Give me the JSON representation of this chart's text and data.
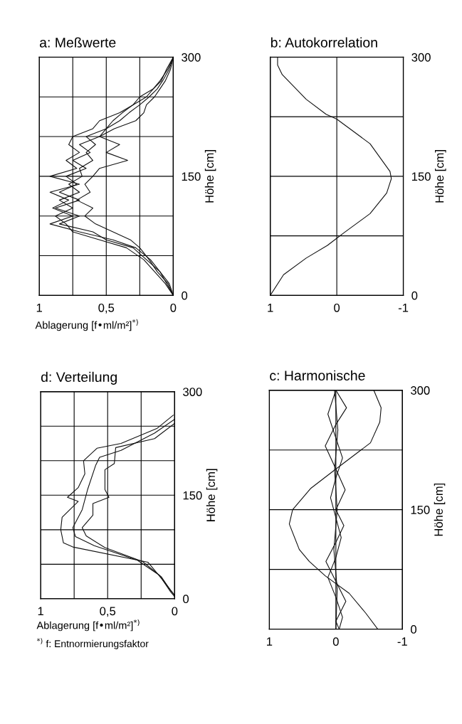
{
  "chart_data": [
    {
      "type": "line",
      "title": "a: Meßwerte",
      "xlabel": "Ablagerung [f•ml/m²]$^{*)}$",
      "ylabel": "Höhe [cm]",
      "xlim": [
        1,
        0
      ],
      "ylim": [
        0,
        300
      ],
      "xticks": [
        1,
        {
          "value": 0.75,
          "label": null
        },
        {
          "value": 0.5,
          "label": "0,5"
        },
        {
          "value": 0.25,
          "label": null
        },
        0
      ],
      "yticks": [
        0,
        {
          "value": 50,
          "label": null
        },
        {
          "value": 100,
          "label": null
        },
        150,
        {
          "value": 200,
          "label": null
        },
        {
          "value": 250,
          "label": null
        },
        300
      ],
      "grid": true,
      "series": [
        {
          "color": "#111111",
          "values": [
            0,
            15,
            30,
            45,
            60,
            70,
            80,
            90,
            100,
            110,
            120,
            130,
            140,
            150,
            160,
            170,
            180,
            190,
            200,
            210,
            220,
            230,
            240,
            250,
            260,
            270,
            285,
            300
          ],
          "x": [
            0,
            0.04,
            0.12,
            0.18,
            0.25,
            0.32,
            0.45,
            0.58,
            0.66,
            0.6,
            0.72,
            0.62,
            0.66,
            0.6,
            0.55,
            0.34,
            0.5,
            0.4,
            0.55,
            0.44,
            0.28,
            0.22,
            0.2,
            0.14,
            0.1,
            0.06,
            0.02,
            0
          ]
        },
        {
          "color": "#111111",
          "values": [
            0,
            15,
            30,
            45,
            60,
            70,
            80,
            90,
            100,
            110,
            120,
            130,
            140,
            150,
            160,
            170,
            180,
            190,
            200,
            210,
            220,
            230,
            240,
            250,
            260,
            270,
            285,
            300
          ],
          "x": [
            0,
            0.05,
            0.1,
            0.2,
            0.3,
            0.5,
            0.6,
            0.85,
            0.7,
            0.88,
            0.7,
            0.85,
            0.72,
            0.8,
            0.65,
            0.75,
            0.62,
            0.7,
            0.55,
            0.5,
            0.4,
            0.33,
            0.25,
            0.18,
            0.12,
            0.08,
            0.03,
            0
          ]
        },
        {
          "color": "#111111",
          "values": [
            0,
            15,
            30,
            45,
            60,
            70,
            80,
            90,
            100,
            110,
            120,
            130,
            140,
            150,
            160,
            170,
            180,
            190,
            200,
            210,
            220,
            230,
            240,
            250,
            260,
            270,
            285,
            300
          ],
          "x": [
            0,
            0.03,
            0.1,
            0.17,
            0.28,
            0.45,
            0.7,
            0.92,
            0.75,
            0.9,
            0.78,
            0.92,
            0.7,
            0.92,
            0.72,
            0.8,
            0.7,
            0.78,
            0.75,
            0.6,
            0.55,
            0.4,
            0.3,
            0.25,
            0.15,
            0.1,
            0.04,
            0
          ]
        },
        {
          "color": "#111111",
          "values": [
            0,
            15,
            30,
            45,
            60,
            70,
            80,
            90,
            100,
            110,
            120,
            130,
            140,
            150,
            160,
            170,
            180,
            190,
            200,
            210,
            220,
            230,
            240,
            250,
            260,
            270,
            285,
            300
          ],
          "x": [
            0,
            0.06,
            0.14,
            0.22,
            0.35,
            0.55,
            0.75,
            0.8,
            0.88,
            0.75,
            0.85,
            0.7,
            0.78,
            0.68,
            0.7,
            0.6,
            0.65,
            0.58,
            0.65,
            0.5,
            0.45,
            0.38,
            0.3,
            0.2,
            0.15,
            0.09,
            0.05,
            0
          ]
        }
      ]
    },
    {
      "type": "line",
      "title": "b: Autokorrelation",
      "ylabel": "Höhe [cm]",
      "xlim": [
        1,
        -1
      ],
      "ylim": [
        0,
        300
      ],
      "xticks": [
        1,
        0,
        -1
      ],
      "yticks": [
        0,
        {
          "value": 75,
          "label": null
        },
        150,
        {
          "value": 225,
          "label": null
        },
        300
      ],
      "grid": true,
      "series": [
        {
          "color": "#111111",
          "values": [
            0,
            26,
            47,
            63,
            72,
            79,
            103,
            129,
            147,
            156,
            191,
            222,
            228,
            247,
            278,
            290,
            300
          ],
          "x": [
            1,
            0.8,
            0.46,
            0.14,
            0,
            -0.11,
            -0.5,
            -0.75,
            -0.82,
            -0.8,
            -0.5,
            0,
            0.16,
            0.46,
            0.82,
            0.89,
            0.89
          ]
        }
      ]
    },
    {
      "type": "line",
      "title": "d: Verteilung",
      "xlabel": "Ablagerung [f•ml/m²]$^{*)}$",
      "ylabel": "Höhe [cm]",
      "xlim": [
        1,
        0
      ],
      "ylim": [
        0,
        300
      ],
      "xticks": [
        1,
        {
          "value": 0.75,
          "label": null
        },
        {
          "value": 0.5,
          "label": "0,5"
        },
        {
          "value": 0.25,
          "label": null
        },
        0
      ],
      "yticks": [
        0,
        {
          "value": 50,
          "label": null
        },
        {
          "value": 100,
          "label": null
        },
        150,
        {
          "value": 200,
          "label": null
        },
        {
          "value": 250,
          "label": null
        },
        300
      ],
      "grid": true,
      "annotations": [
        "$^{*)}$ f: Entnormierungsfaktor"
      ],
      "series": [
        {
          "color": "#111111",
          "values": [
            3,
            10,
            30,
            53,
            75,
            81,
            100,
            118,
            141,
            147,
            161,
            181,
            200,
            218,
            225,
            247,
            266
          ],
          "x": [
            0,
            0.03,
            0.1,
            0.2,
            0.76,
            0.83,
            0.85,
            0.84,
            0.72,
            0.8,
            0.72,
            0.67,
            0.68,
            0.58,
            0.4,
            0.13,
            0.01
          ]
        },
        {
          "color": "#111111",
          "values": [
            5,
            15,
            35,
            56,
            77,
            90,
            103,
            129,
            158,
            193,
            205,
            215,
            240,
            260
          ],
          "x": [
            0,
            0.04,
            0.12,
            0.28,
            0.6,
            0.74,
            0.76,
            0.69,
            0.65,
            0.59,
            0.56,
            0.4,
            0.15,
            0
          ]
        },
        {
          "color": "#111111",
          "values": [
            5,
            12,
            32,
            54,
            74,
            91,
            103,
            121,
            138,
            147,
            158,
            187,
            196,
            219,
            232,
            254
          ],
          "x": [
            0,
            0.03,
            0.1,
            0.24,
            0.52,
            0.66,
            0.69,
            0.61,
            0.61,
            0.49,
            0.52,
            0.52,
            0.45,
            0.44,
            0.15,
            0
          ]
        }
      ]
    },
    {
      "type": "line",
      "title": "c: Harmonische",
      "ylabel": "Höhe [cm]",
      "xlim": [
        1,
        -1
      ],
      "ylim": [
        0,
        300
      ],
      "xticks": [
        1,
        0,
        -1
      ],
      "yticks": [
        0,
        {
          "value": 75,
          "label": null
        },
        150,
        {
          "value": 225,
          "label": null
        },
        300
      ],
      "grid": true,
      "series": [
        {
          "color": "#111111",
          "values": [
            0,
            20,
            45,
            67,
            85,
            100,
            132,
            150,
            177,
            201,
            220,
            234,
            260,
            278,
            300
          ],
          "x": [
            -0.63,
            -0.45,
            -0.2,
            0.16,
            0.4,
            0.55,
            0.7,
            0.65,
            0.375,
            0,
            -0.3,
            -0.52,
            -0.66,
            -0.68,
            -0.57
          ]
        },
        {
          "color": "#111111",
          "values": [
            0,
            10,
            35,
            60,
            85,
            109,
            130,
            150,
            175,
            201,
            230,
            257,
            278,
            300
          ],
          "x": [
            -0.05,
            0,
            -0.15,
            0,
            0.15,
            0,
            -0.12,
            0,
            -0.14,
            0,
            0.16,
            0,
            -0.16,
            0
          ]
        },
        {
          "color": "#111111",
          "values": [
            0,
            15,
            40,
            65,
            90,
            115,
            140,
            165,
            190,
            215,
            240,
            270,
            300
          ],
          "x": [
            -0.05,
            -0.1,
            0,
            0.12,
            0,
            -0.08,
            0,
            0.08,
            0,
            -0.1,
            0,
            0.12,
            0
          ]
        },
        {
          "color": "#111111",
          "values": [
            0,
            50,
            100,
            150,
            200,
            250,
            300
          ],
          "x": [
            0,
            -0.02,
            0.03,
            -0.02,
            0.02,
            -0.03,
            0.02
          ]
        }
      ]
    }
  ]
}
